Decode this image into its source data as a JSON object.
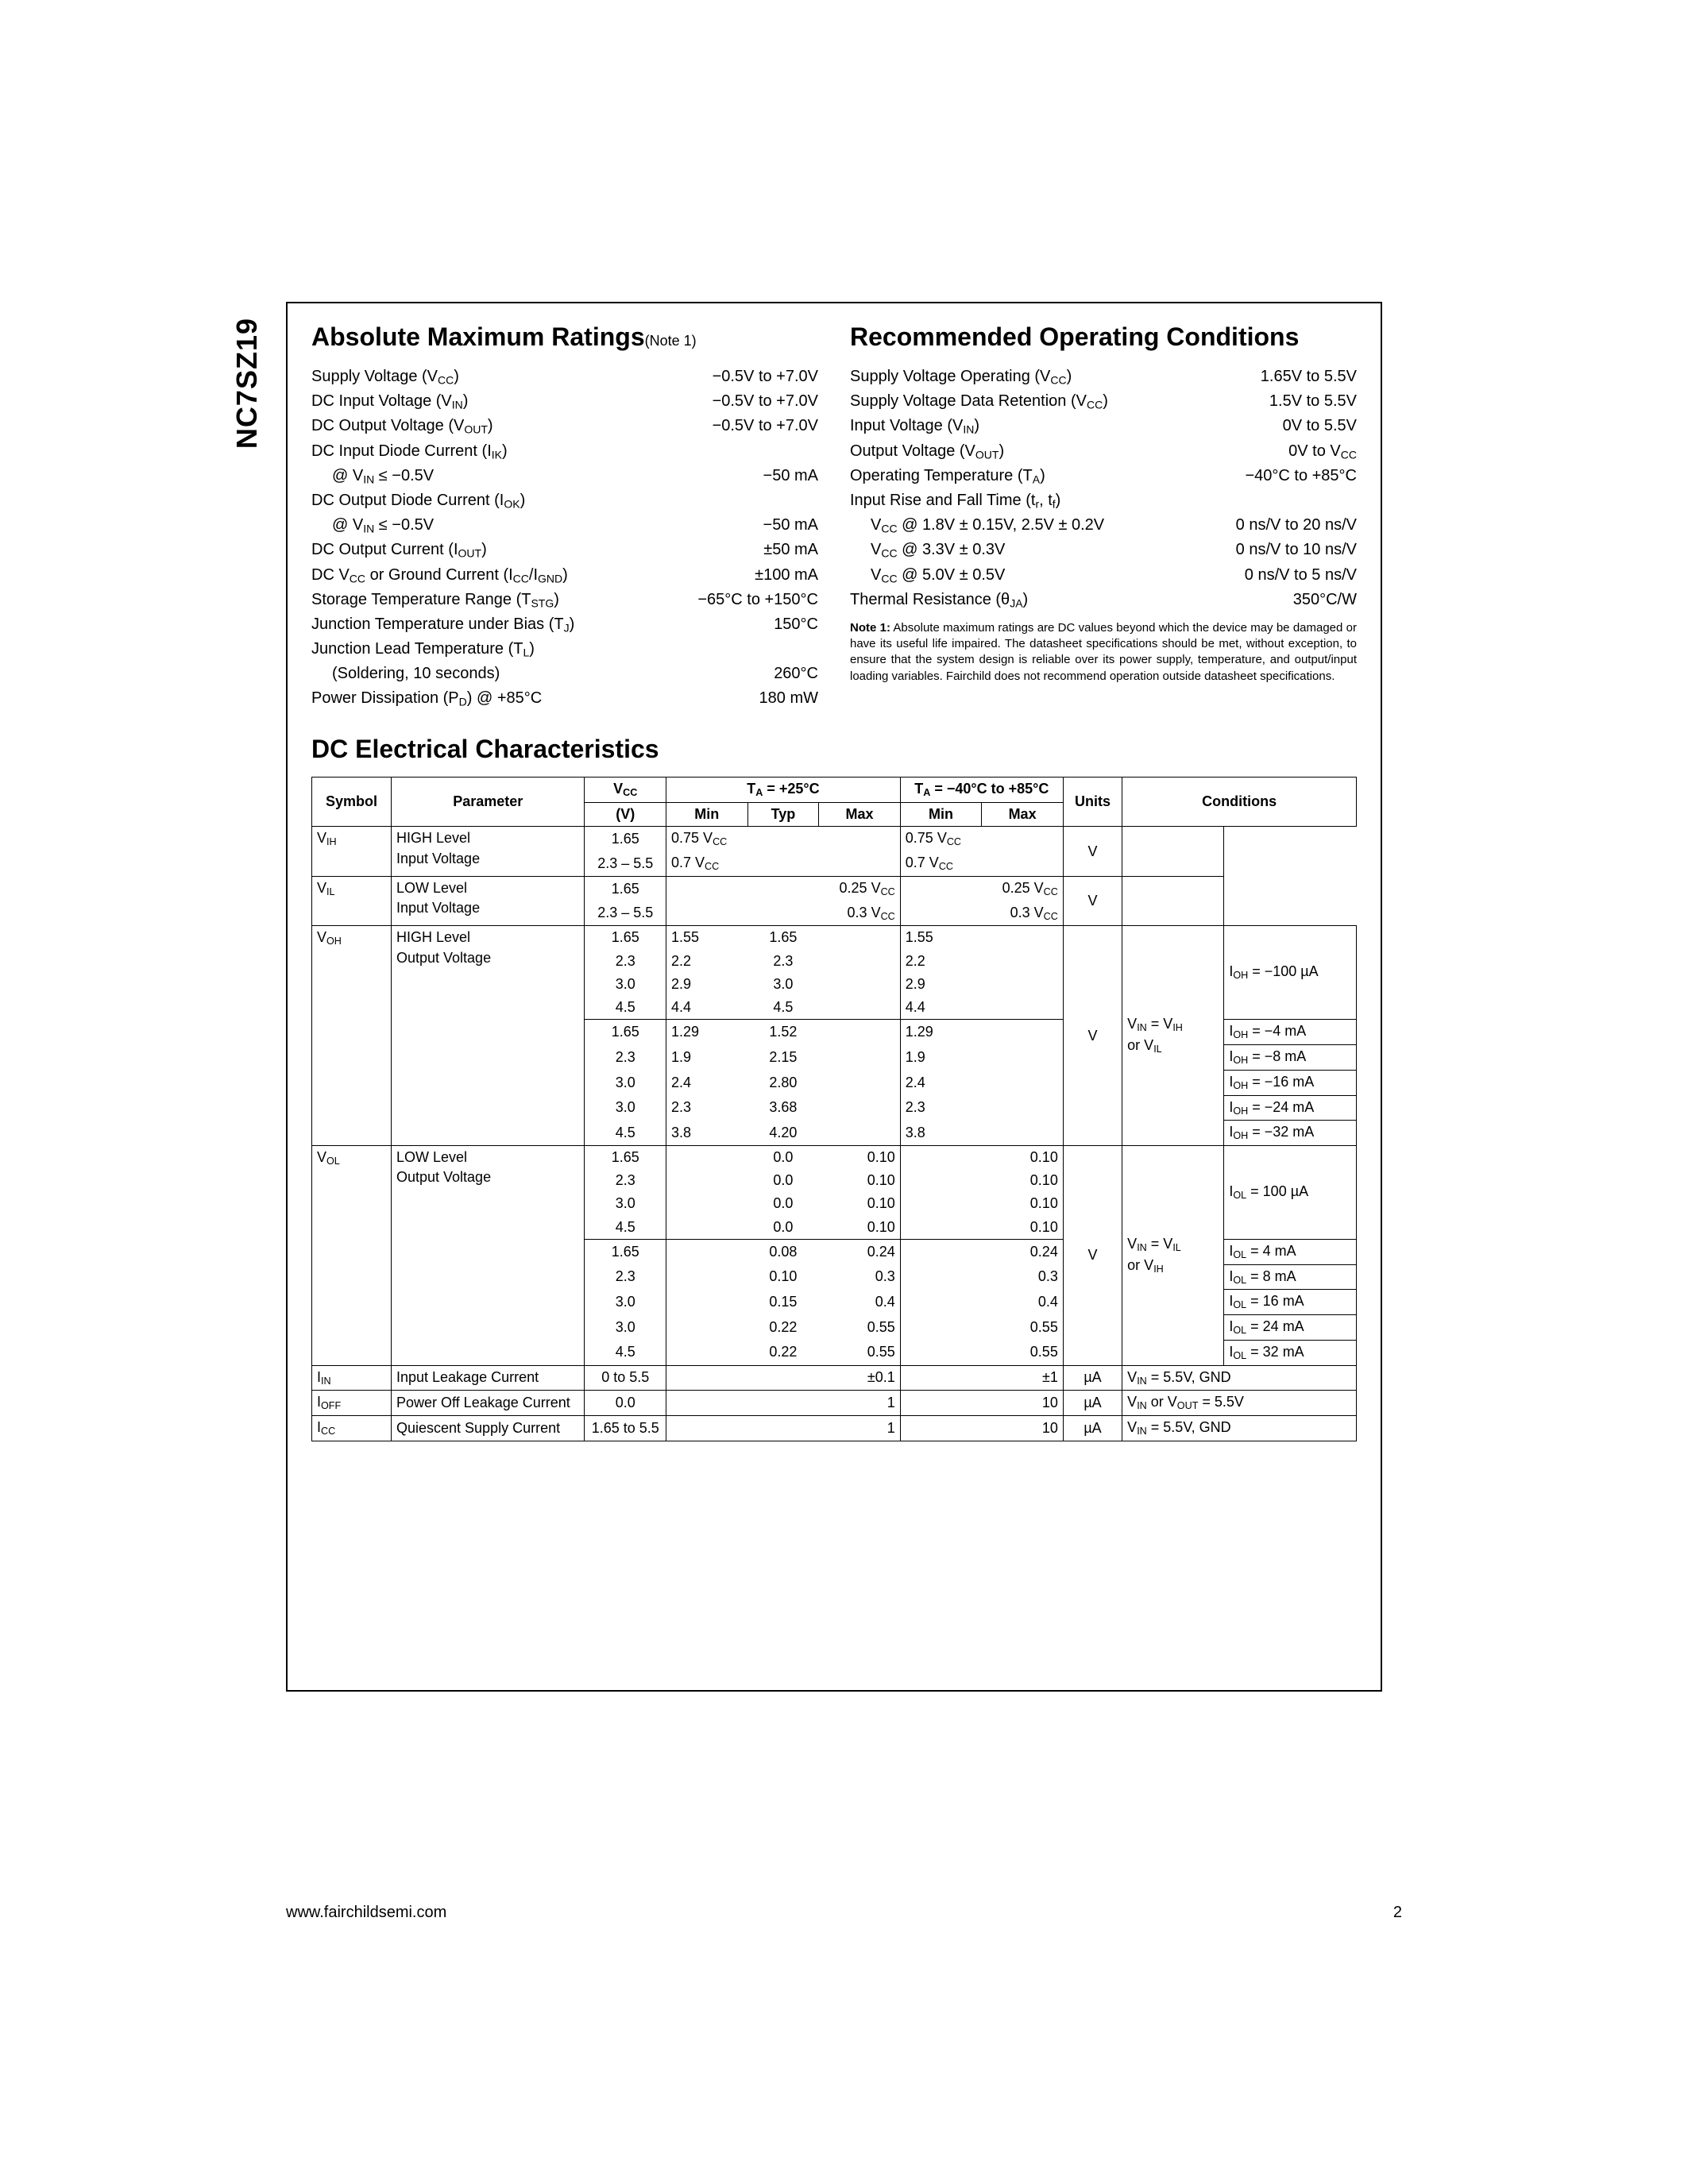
{
  "part_number": "NC7SZ19",
  "footer_url": "www.fairchildsemi.com",
  "page_number": "2",
  "abs_max": {
    "title": "Absolute Maximum Ratings",
    "note_ref": "(Note 1)",
    "rows": [
      {
        "label": "Supply Voltage (V<sub>CC</sub>)",
        "val": "−0.5V to +7.0V",
        "indent": false
      },
      {
        "label": "DC Input Voltage (V<sub>IN</sub>)",
        "val": "−0.5V to +7.0V",
        "indent": false
      },
      {
        "label": "DC Output Voltage (V<sub>OUT</sub>)",
        "val": "−0.5V to +7.0V",
        "indent": false
      },
      {
        "label": "DC Input Diode Current (I<sub>IK</sub>)",
        "val": "",
        "indent": false
      },
      {
        "label": "@ V<sub>IN</sub> ≤ −0.5V",
        "val": "−50 mA",
        "indent": true
      },
      {
        "label": "DC Output Diode Current (I<sub>OK</sub>)",
        "val": "",
        "indent": false
      },
      {
        "label": "@ V<sub>IN</sub> ≤ −0.5V",
        "val": "−50 mA",
        "indent": true
      },
      {
        "label": "DC Output Current (I<sub>OUT</sub>)",
        "val": "±50 mA",
        "indent": false
      },
      {
        "label": "DC V<sub>CC</sub> or Ground Current (I<sub>CC</sub>/I<sub>GND</sub>)",
        "val": "±100 mA",
        "indent": false
      },
      {
        "label": "Storage Temperature Range (T<sub>STG</sub>)",
        "val": "−65°C to +150°C",
        "indent": false
      },
      {
        "label": "Junction Temperature under Bias (T<sub>J</sub>)",
        "val": "150°C",
        "indent": false
      },
      {
        "label": "Junction Lead Temperature (T<sub>L</sub>)",
        "val": "",
        "indent": false
      },
      {
        "label": "(Soldering, 10 seconds)",
        "val": "260°C",
        "indent": true
      },
      {
        "label": "Power Dissipation (P<sub>D</sub>) @ +85°C",
        "val": "180 mW",
        "indent": false
      }
    ]
  },
  "rec_op": {
    "title": "Recommended Operating Conditions",
    "rows": [
      {
        "label": "Supply Voltage Operating (V<sub>CC</sub>)",
        "val": "1.65V to 5.5V",
        "indent": false
      },
      {
        "label": "Supply Voltage Data Retention (V<sub>CC</sub>)",
        "val": "1.5V to 5.5V",
        "indent": false
      },
      {
        "label": "Input Voltage (V<sub>IN</sub>)",
        "val": "0V to 5.5V",
        "indent": false
      },
      {
        "label": "Output Voltage (V<sub>OUT</sub>)",
        "val": "0V to V<sub>CC</sub>",
        "indent": false
      },
      {
        "label": "Operating Temperature (T<sub>A</sub>)",
        "val": "−40°C to +85°C",
        "indent": false
      },
      {
        "label": "Input Rise and Fall Time (t<sub>r</sub>, t<sub>f</sub>)",
        "val": "",
        "indent": false
      },
      {
        "label": "V<sub>CC</sub> @ 1.8V ± 0.15V, 2.5V ± 0.2V",
        "val": "0 ns/V to 20 ns/V",
        "indent": true
      },
      {
        "label": "V<sub>CC</sub> @ 3.3V ± 0.3V",
        "val": "0 ns/V to 10 ns/V",
        "indent": true
      },
      {
        "label": "V<sub>CC</sub> @ 5.0V ± 0.5V",
        "val": "0 ns/V to 5 ns/V",
        "indent": true
      },
      {
        "label": "Thermal Resistance (θ<sub>JA</sub>)",
        "val": "350°C/W",
        "indent": false
      }
    ],
    "note": "<b>Note 1:</b> Absolute maximum ratings are DC values beyond which the device may be damaged or have its useful life impaired. The datasheet specifications should be met, without exception, to ensure that the system design is reliable over its power supply, temperature, and output/input loading variables. Fairchild does not recommend operation outside datasheet specifications."
  },
  "dc_elec": {
    "title": "DC Electrical Characteristics",
    "header": {
      "symbol": "Symbol",
      "parameter": "Parameter",
      "vcc": "V<sub>CC</sub>",
      "vcc_unit": "(V)",
      "ta25": "T<sub>A</sub> = +25°C",
      "ta40": "T<sub>A</sub> = −40°C to +85°C",
      "min": "Min",
      "typ": "Typ",
      "max": "Max",
      "units": "Units",
      "conditions": "Conditions"
    },
    "sections": [
      {
        "symbol": "V<sub>IH</sub>",
        "param": "HIGH Level<br>Input Voltage",
        "unit": "V",
        "cond_col1": "",
        "cond_col2": "",
        "rows": [
          {
            "vcc": "1.65",
            "min": "0.75 V<sub>CC</sub>",
            "typ": "",
            "max": "",
            "min2": "0.75 V<sub>CC</sub>",
            "max2": "",
            "bb": true
          },
          {
            "vcc": "2.3 – 5.5",
            "min": "0.7 V<sub>CC</sub>",
            "typ": "",
            "max": "",
            "min2": "0.7 V<sub>CC</sub>",
            "max2": "",
            "bb": false
          }
        ]
      },
      {
        "symbol": "V<sub>IL</sub>",
        "param": "LOW Level<br>Input Voltage",
        "unit": "V",
        "cond_col1": "",
        "cond_col2": "",
        "rows": [
          {
            "vcc": "1.65",
            "min": "",
            "typ": "",
            "max": "0.25 V<sub>CC</sub>",
            "min2": "",
            "max2": "0.25 V<sub>CC</sub>",
            "bb": true
          },
          {
            "vcc": "2.3 – 5.5",
            "min": "",
            "typ": "",
            "max": "0.3 V<sub>CC</sub>",
            "min2": "",
            "max2": "0.3 V<sub>CC</sub>",
            "bb": false
          }
        ]
      },
      {
        "symbol": "V<sub>OH</sub>",
        "param": "HIGH Level<br>Output Voltage",
        "unit": "V",
        "cond_col1": "V<sub>IN</sub> = V<sub>IH</sub><br>or V<sub>IL</sub>",
        "rows": [
          {
            "vcc": "1.65",
            "min": "1.55",
            "typ": "1.65",
            "max": "",
            "min2": "1.55",
            "max2": "",
            "cond2": "",
            "bb": true,
            "cond2_rs": 4,
            "cond2_html": "I<sub>OH</sub> = −100 µA"
          },
          {
            "vcc": "2.3",
            "min": "2.2",
            "typ": "2.3",
            "max": "",
            "min2": "2.2",
            "max2": "",
            "bb": true
          },
          {
            "vcc": "3.0",
            "min": "2.9",
            "typ": "3.0",
            "max": "",
            "min2": "2.9",
            "max2": "",
            "bb": true
          },
          {
            "vcc": "4.5",
            "min": "4.4",
            "typ": "4.5",
            "max": "",
            "min2": "4.4",
            "max2": "",
            "bb": false
          },
          {
            "vcc": "1.65",
            "min": "1.29",
            "typ": "1.52",
            "max": "",
            "min2": "1.29",
            "max2": "",
            "cond2_html": "I<sub>OH</sub> =  −4 mA",
            "bb": true
          },
          {
            "vcc": "2.3",
            "min": "1.9",
            "typ": "2.15",
            "max": "",
            "min2": "1.9",
            "max2": "",
            "cond2_html": "I<sub>OH</sub> =  −8 mA",
            "bb": true
          },
          {
            "vcc": "3.0",
            "min": "2.4",
            "typ": "2.80",
            "max": "",
            "min2": "2.4",
            "max2": "",
            "cond2_html": "I<sub>OH</sub> = −16 mA",
            "bb": true
          },
          {
            "vcc": "3.0",
            "min": "2.3",
            "typ": "3.68",
            "max": "",
            "min2": "2.3",
            "max2": "",
            "cond2_html": "I<sub>OH</sub> = −24 mA",
            "bb": true
          },
          {
            "vcc": "4.5",
            "min": "3.8",
            "typ": "4.20",
            "max": "",
            "min2": "3.8",
            "max2": "",
            "cond2_html": "I<sub>OH</sub> = −32 mA",
            "bb": false
          }
        ]
      },
      {
        "symbol": "V<sub>OL</sub>",
        "param": "LOW Level<br>Output Voltage",
        "unit": "V",
        "cond_col1": "V<sub>IN</sub> = V<sub>IL</sub><br>or V<sub>IH</sub>",
        "rows": [
          {
            "vcc": "1.65",
            "min": "",
            "typ": "0.0",
            "max": "0.10",
            "min2": "",
            "max2": "0.10",
            "cond2_rs": 4,
            "cond2_html": "I<sub>OL</sub> = 100 µA",
            "bb": true
          },
          {
            "vcc": "2.3",
            "min": "",
            "typ": "0.0",
            "max": "0.10",
            "min2": "",
            "max2": "0.10",
            "bb": true
          },
          {
            "vcc": "3.0",
            "min": "",
            "typ": "0.0",
            "max": "0.10",
            "min2": "",
            "max2": "0.10",
            "bb": true
          },
          {
            "vcc": "4.5",
            "min": "",
            "typ": "0.0",
            "max": "0.10",
            "min2": "",
            "max2": "0.10",
            "bb": false
          },
          {
            "vcc": "1.65",
            "min": "",
            "typ": "0.08",
            "max": "0.24",
            "min2": "",
            "max2": "0.24",
            "cond2_html": "I<sub>OL</sub> =  4 mA",
            "bb": true
          },
          {
            "vcc": "2.3",
            "min": "",
            "typ": "0.10",
            "max": "0.3",
            "min2": "",
            "max2": "0.3",
            "cond2_html": "I<sub>OL</sub> =  8 mA",
            "bb": true
          },
          {
            "vcc": "3.0",
            "min": "",
            "typ": "0.15",
            "max": "0.4",
            "min2": "",
            "max2": "0.4",
            "cond2_html": "I<sub>OL</sub> = 16 mA",
            "bb": true
          },
          {
            "vcc": "3.0",
            "min": "",
            "typ": "0.22",
            "max": "0.55",
            "min2": "",
            "max2": "0.55",
            "cond2_html": "I<sub>OL</sub> = 24 mA",
            "bb": true
          },
          {
            "vcc": "4.5",
            "min": "",
            "typ": "0.22",
            "max": "0.55",
            "min2": "",
            "max2": "0.55",
            "cond2_html": "I<sub>OL</sub> = 32 mA",
            "bb": false
          }
        ]
      }
    ],
    "simple_rows": [
      {
        "symbol": "I<sub>IN</sub>",
        "param": "Input Leakage Current",
        "vcc": "0 to 5.5",
        "min": "",
        "typ": "",
        "max": "±0.1",
        "min2": "",
        "max2": "±1",
        "unit": "µA",
        "cond": "V<sub>IN</sub> = 5.5V, GND"
      },
      {
        "symbol": "I<sub>OFF</sub>",
        "param": "Power Off Leakage Current",
        "vcc": "0.0",
        "min": "",
        "typ": "",
        "max": "1",
        "min2": "",
        "max2": "10",
        "unit": "µA",
        "cond": "V<sub>IN</sub> or V<sub>OUT</sub> = 5.5V"
      },
      {
        "symbol": "I<sub>CC</sub>",
        "param": "Quiescent Supply Current",
        "vcc": "1.65 to 5.5",
        "min": "",
        "typ": "",
        "max": "1",
        "min2": "",
        "max2": "10",
        "unit": "µA",
        "cond": "V<sub>IN</sub> = 5.5V, GND"
      }
    ]
  },
  "colors": {
    "text": "#000000",
    "bg": "#ffffff",
    "border": "#000000"
  }
}
